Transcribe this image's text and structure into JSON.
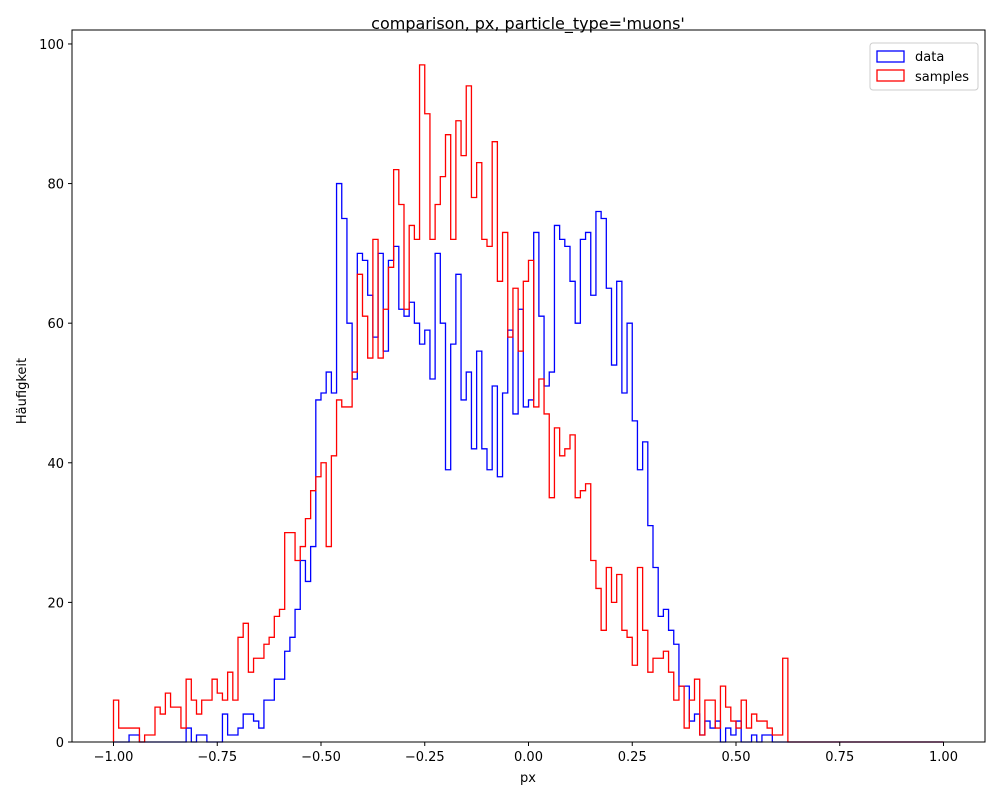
{
  "chart_data": {
    "type": "histogram-step",
    "title": "comparison, px, particle_type='muons'",
    "xlabel": "px",
    "ylabel": "Häufigkeit",
    "xlim": [
      -1.1,
      1.1
    ],
    "ylim": [
      0,
      102
    ],
    "x_ticks": [
      -1.0,
      -0.75,
      -0.5,
      -0.25,
      0.0,
      0.25,
      0.5,
      0.75,
      1.0
    ],
    "x_tick_labels": [
      "−1.00",
      "−0.75",
      "−0.50",
      "−0.25",
      "0.00",
      "0.25",
      "0.50",
      "0.75",
      "1.00"
    ],
    "y_ticks": [
      0,
      20,
      40,
      60,
      80,
      100
    ],
    "y_tick_labels": [
      "0",
      "20",
      "40",
      "60",
      "80",
      "100"
    ],
    "grid": false,
    "legend_position": "top-right",
    "bin_range": [
      -1.0,
      1.0
    ],
    "bin_count": 160,
    "series": [
      {
        "name": "data",
        "color": "#0000ff",
        "values": [
          0,
          0,
          0,
          1,
          1,
          0,
          0,
          0,
          0,
          0,
          0,
          0,
          0,
          0,
          2,
          0,
          1,
          1,
          0,
          0,
          0,
          4,
          1,
          1,
          2,
          4,
          4,
          3,
          2,
          6,
          6,
          9,
          9,
          13,
          15,
          19,
          26,
          23,
          28,
          49,
          50,
          53,
          50,
          80,
          75,
          60,
          52,
          70,
          69,
          64,
          58,
          70,
          56,
          69,
          71,
          62,
          61,
          63,
          60,
          57,
          59,
          52,
          70,
          60,
          39,
          57,
          67,
          49,
          53,
          42,
          56,
          42,
          39,
          51,
          38,
          50,
          59,
          47,
          62,
          48,
          49,
          73,
          61,
          51,
          53,
          74,
          72,
          71,
          66,
          60,
          72,
          73,
          64,
          76,
          75,
          65,
          54,
          66,
          50,
          60,
          46,
          39,
          43,
          31,
          25,
          18,
          19,
          16,
          14,
          8,
          8,
          3,
          4,
          1,
          3,
          2,
          3,
          0,
          2,
          1,
          3,
          0,
          0,
          1,
          0,
          1,
          1,
          0,
          0,
          0,
          0,
          0,
          0,
          0,
          0,
          0,
          0,
          0,
          0,
          0,
          0,
          0,
          0,
          0,
          0,
          0,
          0,
          0,
          0,
          0,
          0,
          0,
          0,
          0,
          0,
          0,
          0,
          0,
          0,
          0
        ]
      },
      {
        "name": "samples",
        "color": "#ff0000",
        "values": [
          6,
          2,
          2,
          2,
          2,
          0,
          1,
          1,
          5,
          4,
          7,
          5,
          5,
          2,
          9,
          6,
          4,
          6,
          6,
          9,
          7,
          6,
          10,
          6,
          15,
          17,
          10,
          12,
          12,
          14,
          15,
          18,
          19,
          30,
          30,
          26,
          28,
          32,
          36,
          38,
          40,
          28,
          41,
          49,
          48,
          48,
          53,
          67,
          61,
          55,
          72,
          55,
          62,
          68,
          82,
          77,
          62,
          74,
          72,
          97,
          90,
          72,
          77,
          81,
          87,
          72,
          89,
          84,
          94,
          78,
          83,
          72,
          71,
          86,
          66,
          73,
          58,
          65,
          56,
          66,
          69,
          48,
          52,
          47,
          35,
          45,
          41,
          42,
          44,
          35,
          36,
          37,
          26,
          22,
          16,
          25,
          20,
          24,
          16,
          15,
          11,
          25,
          16,
          10,
          12,
          12,
          13,
          10,
          6,
          8,
          2,
          6,
          9,
          1,
          6,
          6,
          2,
          8,
          5,
          3,
          2,
          6,
          2,
          4,
          3,
          3,
          2,
          1,
          1,
          12,
          0,
          0,
          0,
          0,
          0,
          0,
          0,
          0,
          0,
          0,
          0,
          0,
          0,
          0,
          0,
          0,
          0,
          0,
          0,
          0,
          0,
          0,
          0,
          0,
          0,
          0,
          0,
          0,
          0,
          0
        ]
      }
    ]
  }
}
